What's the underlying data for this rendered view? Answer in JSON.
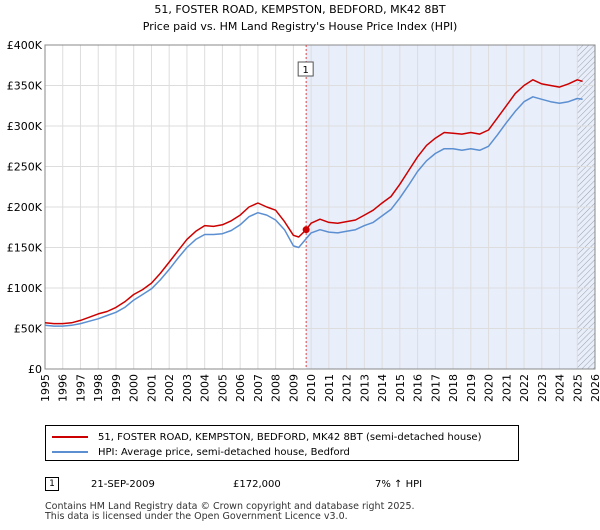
{
  "chart_data": {
    "type": "line",
    "title": "51, FOSTER ROAD, KEMPSTON, BEDFORD, MK42 8BT",
    "subtitle": "Price paid vs. HM Land Registry's House Price Index (HPI)",
    "xlim": [
      1995,
      2026
    ],
    "ylim": [
      0,
      400000
    ],
    "yticks": [
      0,
      50000,
      100000,
      150000,
      200000,
      250000,
      300000,
      350000,
      400000
    ],
    "ytick_labels": [
      "£0",
      "£50K",
      "£100K",
      "£150K",
      "£200K",
      "£250K",
      "£300K",
      "£350K",
      "£400K"
    ],
    "xticks": [
      1995,
      1996,
      1997,
      1998,
      1999,
      2000,
      2001,
      2002,
      2003,
      2004,
      2005,
      2006,
      2007,
      2008,
      2009,
      2010,
      2011,
      2012,
      2013,
      2014,
      2015,
      2016,
      2017,
      2018,
      2019,
      2020,
      2021,
      2022,
      2023,
      2024,
      2025,
      2026
    ],
    "xtick_labels": [
      "1995",
      "1996",
      "1997",
      "1998",
      "1999",
      "2000",
      "2001",
      "2002",
      "2003",
      "2004",
      "2005",
      "2006",
      "2007",
      "2008",
      "2009",
      "2010",
      "2011",
      "2012",
      "2013",
      "2014",
      "2015",
      "2016",
      "2017",
      "2018",
      "2019",
      "2020",
      "2021",
      "2022",
      "2023",
      "2024",
      "2025",
      "2026"
    ],
    "grid": true,
    "shaded_region": {
      "from": 2009.72,
      "to": 2026
    },
    "hatched_region": {
      "from": 2025.0,
      "to": 2026
    },
    "series": [
      {
        "name": "51, FOSTER ROAD, KEMPSTON, BEDFORD, MK42 8BT (semi-detached house)",
        "color": "#cc0000",
        "x": [
          1995,
          1995.5,
          1996,
          1996.5,
          1997,
          1997.5,
          1998,
          1998.5,
          1999,
          1999.5,
          2000,
          2000.5,
          2001,
          2001.5,
          2002,
          2002.5,
          2003,
          2003.5,
          2004,
          2004.5,
          2005,
          2005.5,
          2006,
          2006.5,
          2007,
          2007.5,
          2008,
          2008.5,
          2009,
          2009.3,
          2009.72,
          2010,
          2010.5,
          2011,
          2011.5,
          2012,
          2012.5,
          2013,
          2013.5,
          2014,
          2014.5,
          2015,
          2015.5,
          2016,
          2016.5,
          2017,
          2017.5,
          2018,
          2018.5,
          2019,
          2019.5,
          2020,
          2020.5,
          2021,
          2021.5,
          2022,
          2022.5,
          2023,
          2023.5,
          2024,
          2024.5,
          2025,
          2025.3
        ],
        "values": [
          57000,
          56000,
          56000,
          57000,
          60000,
          64000,
          68000,
          71000,
          76000,
          83000,
          92000,
          98000,
          106000,
          118000,
          132000,
          146000,
          160000,
          170000,
          177000,
          176000,
          178000,
          183000,
          190000,
          200000,
          205000,
          200000,
          196000,
          182000,
          165000,
          163000,
          172000,
          180000,
          185000,
          181000,
          180000,
          182000,
          184000,
          190000,
          196000,
          205000,
          213000,
          228000,
          245000,
          262000,
          276000,
          285000,
          292000,
          291000,
          290000,
          292000,
          290000,
          295000,
          310000,
          325000,
          340000,
          350000,
          357000,
          352000,
          350000,
          348000,
          352000,
          357000,
          355000
        ]
      },
      {
        "name": "HPI: Average price, semi-detached house, Bedford",
        "color": "#5b8fd1",
        "x": [
          1995,
          1995.5,
          1996,
          1996.5,
          1997,
          1997.5,
          1998,
          1998.5,
          1999,
          1999.5,
          2000,
          2000.5,
          2001,
          2001.5,
          2002,
          2002.5,
          2003,
          2003.5,
          2004,
          2004.5,
          2005,
          2005.5,
          2006,
          2006.5,
          2007,
          2007.5,
          2008,
          2008.5,
          2009,
          2009.3,
          2009.72,
          2010,
          2010.5,
          2011,
          2011.5,
          2012,
          2012.5,
          2013,
          2013.5,
          2014,
          2014.5,
          2015,
          2015.5,
          2016,
          2016.5,
          2017,
          2017.5,
          2018,
          2018.5,
          2019,
          2019.5,
          2020,
          2020.5,
          2021,
          2021.5,
          2022,
          2022.5,
          2023,
          2023.5,
          2024,
          2024.5,
          2025,
          2025.3
        ],
        "values": [
          54000,
          53000,
          53000,
          54000,
          56000,
          59000,
          62000,
          66000,
          70000,
          76000,
          85000,
          92000,
          99000,
          110000,
          123000,
          137000,
          150000,
          160000,
          166000,
          166000,
          167000,
          171000,
          178000,
          188000,
          193000,
          190000,
          184000,
          172000,
          152000,
          150000,
          161000,
          168000,
          172000,
          169000,
          168000,
          170000,
          172000,
          177000,
          181000,
          189000,
          197000,
          211000,
          227000,
          244000,
          257000,
          266000,
          272000,
          272000,
          270000,
          272000,
          270000,
          275000,
          289000,
          304000,
          318000,
          330000,
          336000,
          333000,
          330000,
          328000,
          330000,
          334000,
          333000
        ]
      }
    ],
    "annotations": [
      {
        "label": "1",
        "x": 2009.72,
        "y": 172000,
        "color": "#cc0000"
      }
    ],
    "legend_position": "below"
  },
  "legend": {
    "items": [
      {
        "label": "51, FOSTER ROAD, KEMPSTON, BEDFORD, MK42 8BT (semi-detached house)",
        "color": "#cc0000"
      },
      {
        "label": "HPI: Average price, semi-detached house, Bedford",
        "color": "#5b8fd1"
      }
    ]
  },
  "sales": [
    {
      "num": "1",
      "date": "21-SEP-2009",
      "price": "£172,000",
      "hpi": "7% ↑ HPI"
    }
  ],
  "footer": {
    "line1": "Contains HM Land Registry data © Crown copyright and database right 2025.",
    "line2": "This data is licensed under the Open Government Licence v3.0."
  }
}
